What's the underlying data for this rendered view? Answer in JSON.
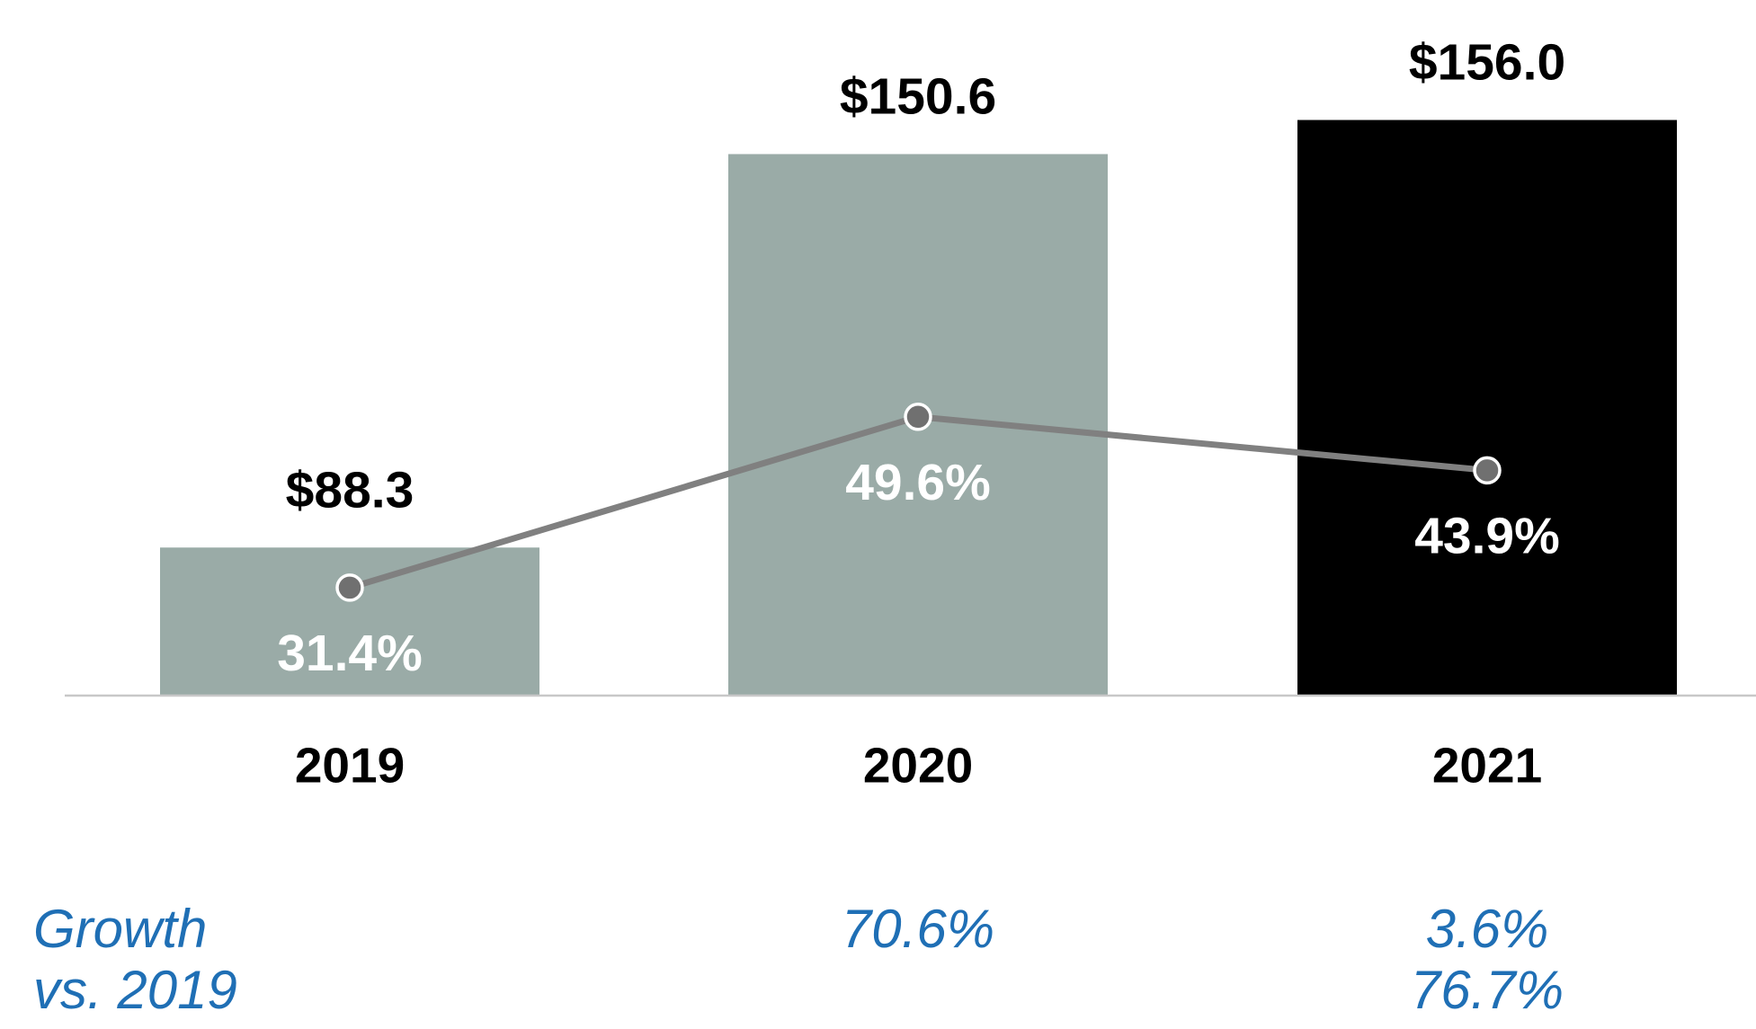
{
  "chart_data": {
    "type": "bar",
    "categories": [
      "2019",
      "2020",
      "2021"
    ],
    "series": [
      {
        "type": "bar",
        "colors": [
          "#9aaba7",
          "#9aaba7",
          "#000000"
        ],
        "values": [
          88.3,
          150.6,
          156.0
        ],
        "value_labels": [
          "$88.3",
          "$150.6",
          "$156.0"
        ]
      },
      {
        "type": "line",
        "axis": "y2",
        "color": "#808080",
        "marker_color": "#707070",
        "values": [
          31.4,
          49.6,
          43.9
        ],
        "value_labels": [
          "31.4%",
          "49.6%",
          "43.9%"
        ]
      }
    ],
    "ylim": [
      65,
      175
    ],
    "y2lim": [
      20,
      94
    ],
    "growth_label": [
      "Growth",
      "vs. 2019"
    ],
    "growth_color": "#1f6fb5",
    "growth_values": [
      [],
      [
        70.6
      ],
      [
        3.6,
        76.7
      ]
    ],
    "growth_value_labels": [
      [],
      [
        "70.6%"
      ],
      [
        "3.6%",
        "76.7%"
      ]
    ]
  }
}
